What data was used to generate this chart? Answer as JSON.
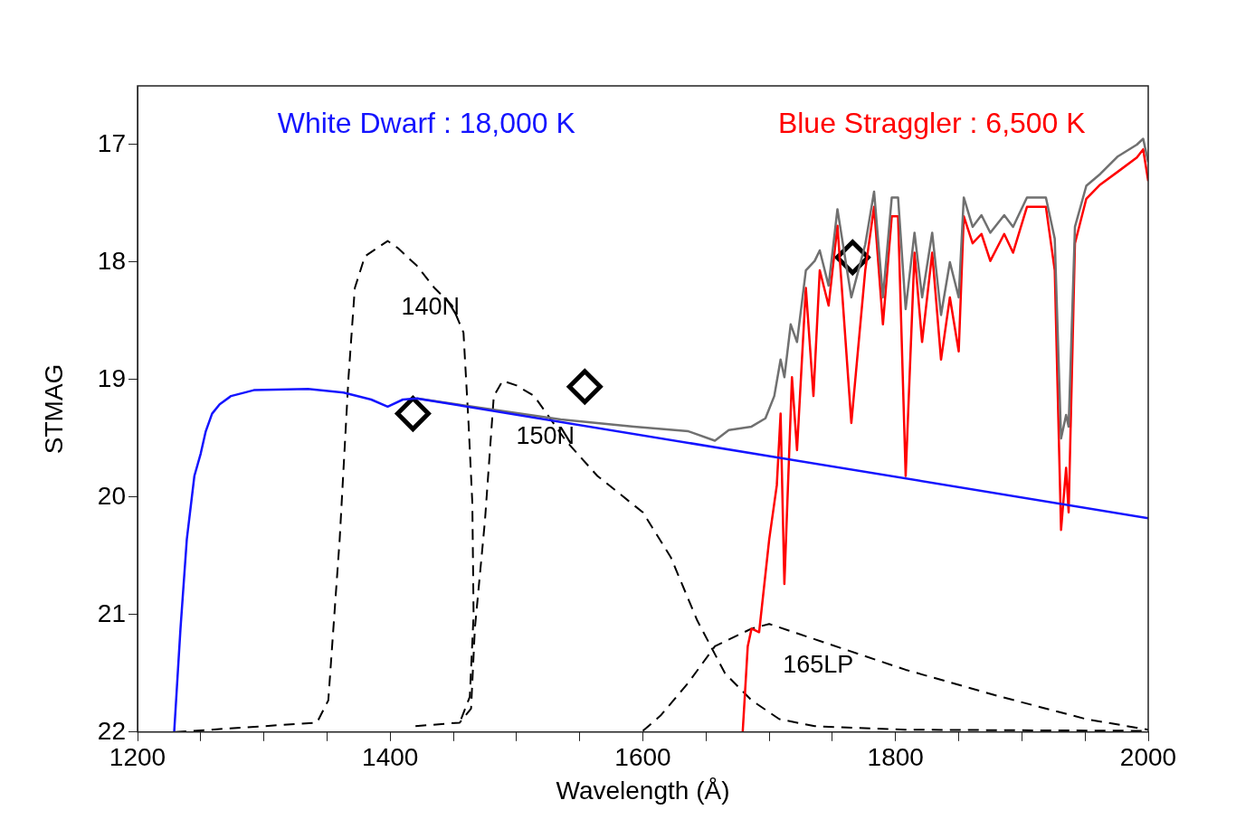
{
  "chart_data": {
    "type": "line",
    "xlabel": "Wavelength (Å)",
    "ylabel": "STMAG",
    "xlim": [
      1200,
      2000
    ],
    "ylim": [
      22,
      16.5
    ],
    "xticks": [
      1200,
      {
        "value": 1250,
        "label": null
      },
      {
        "value": 1300,
        "label": null
      },
      {
        "value": 1350,
        "label": null
      },
      1400,
      {
        "value": 1450,
        "label": null
      },
      {
        "value": 1500,
        "label": null
      },
      {
        "value": 1550,
        "label": null
      },
      1600,
      {
        "value": 1650,
        "label": null
      },
      {
        "value": 1700,
        "label": null
      },
      {
        "value": 1750,
        "label": null
      },
      1800,
      {
        "value": 1850,
        "label": null
      },
      {
        "value": 1900,
        "label": null
      },
      {
        "value": 1950,
        "label": null
      },
      2000
    ],
    "yticks": [
      17,
      18,
      19,
      20,
      21,
      22
    ],
    "grid": false,
    "legend": false,
    "marker": "none",
    "series": [
      {
        "name": "White Dwarf : 18,000 K",
        "color": "#1414ff",
        "x": [
          1229,
          1234,
          1239,
          1245,
          1250,
          1254,
          1259,
          1265,
          1274,
          1292,
          1335,
          1363,
          1385,
          1398,
          1410,
          1421,
          2000
        ],
        "values": [
          22,
          21.12,
          20.36,
          19.82,
          19.63,
          19.44,
          19.29,
          19.21,
          19.14,
          19.09,
          19.08,
          19.11,
          19.17,
          19.23,
          19.17,
          19.16,
          20.18
        ]
      },
      {
        "color": "#707070",
        "x": [
          1421,
          1535,
          1593,
          1636,
          1657,
          1668,
          1686,
          1697,
          1704,
          1709,
          1712,
          1717,
          1722,
          1729,
          1736,
          1740,
          1747,
          1754,
          1765,
          1776,
          1783,
          1790,
          1797,
          1802,
          1808,
          1815,
          1821,
          1829,
          1836,
          1843,
          1850,
          1854,
          1861,
          1868,
          1875,
          1886,
          1893,
          1904,
          1919,
          1926,
          1931,
          1935,
          1937,
          1942,
          1951,
          1962,
          1976,
          1991,
          1996,
          2000
        ],
        "values": [
          19.16,
          19.34,
          19.4,
          19.44,
          19.52,
          19.43,
          19.4,
          19.33,
          19.14,
          18.83,
          18.98,
          18.53,
          18.68,
          18.07,
          17.99,
          17.9,
          18.2,
          17.55,
          18.3,
          17.85,
          17.4,
          18.3,
          17.45,
          17.45,
          18.4,
          17.75,
          18.3,
          17.75,
          18.45,
          18.0,
          18.3,
          17.45,
          17.7,
          17.6,
          17.75,
          17.6,
          17.7,
          17.45,
          17.45,
          17.8,
          19.5,
          19.3,
          19.4,
          17.7,
          17.35,
          17.25,
          17.1,
          17.0,
          16.95,
          17.15
        ]
      },
      {
        "name": "Blue Straggler : 6,500 K",
        "color": "#ff0000",
        "x": [
          1679,
          1683,
          1686,
          1692,
          1700,
          1706,
          1709,
          1712,
          1718,
          1722,
          1729,
          1735,
          1740,
          1747,
          1754,
          1765,
          1776,
          1783,
          1790,
          1797,
          1802,
          1808,
          1815,
          1821,
          1829,
          1836,
          1843,
          1850,
          1854,
          1861,
          1868,
          1875,
          1886,
          1893,
          1904,
          1919,
          1926,
          1931,
          1935,
          1937,
          1942,
          1951,
          1962,
          1976,
          1991,
          1996,
          2000
        ],
        "values": [
          22,
          21.27,
          21.12,
          21.15,
          20.36,
          19.9,
          19.29,
          20.74,
          18.98,
          19.6,
          18.22,
          19.14,
          18.07,
          18.37,
          17.69,
          19.37,
          18.07,
          17.53,
          18.53,
          17.61,
          17.61,
          19.82,
          17.92,
          18.68,
          17.92,
          18.83,
          18.3,
          18.76,
          17.61,
          17.84,
          17.76,
          17.99,
          17.76,
          17.92,
          17.53,
          17.53,
          18.07,
          20.28,
          19.75,
          20.13,
          17.84,
          17.46,
          17.34,
          17.23,
          17.11,
          17.04,
          17.31
        ]
      },
      {
        "name": "140N",
        "color": "#000000",
        "line_style": "dashed",
        "x": [
          1230,
          1342,
          1351,
          1360,
          1367,
          1372,
          1380,
          1398,
          1406,
          1421,
          1435,
          1449,
          1458,
          1462,
          1465,
          1466,
          1463,
          1455
        ],
        "values": [
          22,
          21.92,
          21.73,
          20.36,
          18.98,
          18.22,
          17.95,
          17.82,
          17.88,
          18.03,
          18.22,
          18.37,
          18.6,
          19.37,
          20.05,
          21.0,
          21.7,
          21.92
        ]
      },
      {
        "name": "150N",
        "color": "#000000",
        "line_style": "dashed",
        "x": [
          1420,
          1455,
          1464,
          1467,
          1475,
          1482,
          1489,
          1500,
          1514,
          1539,
          1564,
          1600,
          1622,
          1643,
          1665,
          1686,
          1708,
          1736,
          1808,
          2000
        ],
        "values": [
          21.95,
          21.92,
          21.8,
          21.12,
          20.2,
          19.14,
          19.01,
          19.05,
          19.14,
          19.52,
          19.82,
          20.13,
          20.51,
          21.05,
          21.5,
          21.73,
          21.89,
          21.95,
          21.98,
          21.99
        ]
      },
      {
        "name": "165LP",
        "color": "#000000",
        "line_style": "dashed",
        "x": [
          1600,
          1614,
          1636,
          1657,
          1686,
          1700,
          1736,
          1808,
          1880,
          1951,
          2000
        ],
        "values": [
          21.99,
          21.86,
          21.58,
          21.27,
          21.12,
          21.08,
          21.21,
          21.47,
          21.69,
          21.89,
          21.98
        ]
      },
      {
        "type": "scatter",
        "marker": "diamond",
        "color": "#000000",
        "x": [
          1418,
          1554,
          1766
        ],
        "values": [
          19.29,
          19.06,
          17.96
        ]
      }
    ]
  }
}
